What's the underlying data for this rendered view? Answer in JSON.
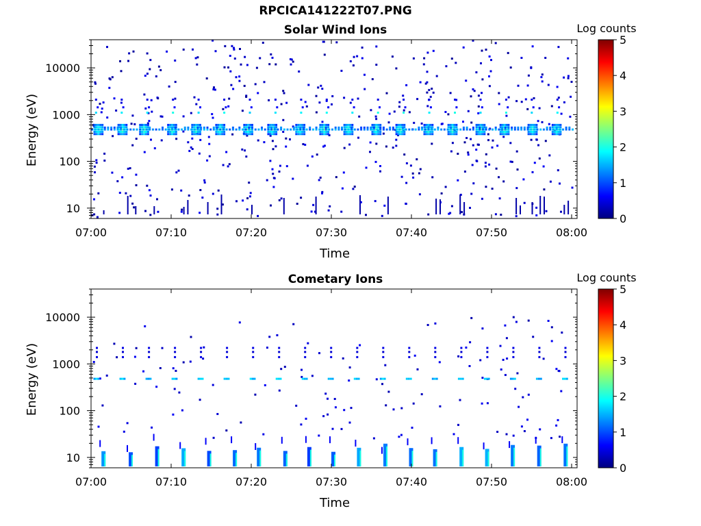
{
  "title": "RPCICA141222T07.PNG",
  "colorbar_label": "Log counts",
  "chart_data": [
    {
      "type": "heatmap",
      "title": "Solar Wind Ions",
      "xlabel": "Time",
      "ylabel": "Energy (eV)",
      "x_ticks": [
        "07:00",
        "07:10",
        "07:20",
        "07:30",
        "07:40",
        "07:50",
        "08:00"
      ],
      "x_range": [
        "07:00",
        "08:00"
      ],
      "y_scale": "log",
      "y_ticks": [
        10,
        100,
        1000,
        10000
      ],
      "y_tick_labels": [
        "10",
        "100",
        "1000",
        "10000"
      ],
      "y_range": [
        6,
        40000
      ],
      "colorbar": {
        "label": "Log counts",
        "range": [
          0,
          5
        ],
        "ticks": [
          "0",
          "1",
          "2",
          "3",
          "4",
          "5"
        ],
        "colormap": "jet"
      },
      "features": {
        "main_beam": {
          "energy_ev": 480,
          "level": 2.2,
          "note_times_min": [
            0.8,
            3.8,
            6.5,
            10,
            13,
            16,
            19.5,
            22.5,
            26,
            29,
            32,
            35.5,
            38.5,
            42,
            45,
            48.5,
            51.5,
            55,
            58
          ]
        },
        "secondary_beam": {
          "energy_ev": 1100,
          "level": 1.6
        },
        "low_energy_spikes_times_min": [
          1.5,
          4.5,
          5.5,
          7.8,
          11.5,
          12,
          14.5,
          16.2,
          20,
          24,
          28,
          33.5,
          37,
          43,
          43.5,
          46,
          46.5,
          53,
          53.5,
          55,
          56,
          56.5,
          59,
          59.5
        ],
        "background_level": 0.3
      }
    },
    {
      "type": "heatmap",
      "title": "Cometary Ions",
      "xlabel": "Time",
      "ylabel": "Energy (eV)",
      "x_ticks": [
        "07:00",
        "07:10",
        "07:20",
        "07:30",
        "07:40",
        "07:50",
        "08:00"
      ],
      "x_range": [
        "07:00",
        "08:00"
      ],
      "y_scale": "log",
      "y_ticks": [
        10,
        100,
        1000,
        10000
      ],
      "y_tick_labels": [
        "10",
        "100",
        "1000",
        "10000"
      ],
      "y_range": [
        6,
        40000
      ],
      "colorbar": {
        "label": "Log counts",
        "range": [
          0,
          5
        ],
        "ticks": [
          "0",
          "1",
          "2",
          "3",
          "4",
          "5"
        ],
        "colormap": "jet"
      },
      "features": {
        "main_beam": {
          "energy_ev": 480,
          "level": 1.3
        },
        "low_energy_bands_times_min": [
          1.3,
          4.7,
          8,
          11.3,
          14.5,
          17.7,
          20.7,
          24,
          27,
          30,
          33.2,
          36.5,
          39.7,
          42.7,
          46,
          49.2,
          52.4,
          55.7,
          59
        ],
        "background_level": 0.2
      }
    }
  ]
}
